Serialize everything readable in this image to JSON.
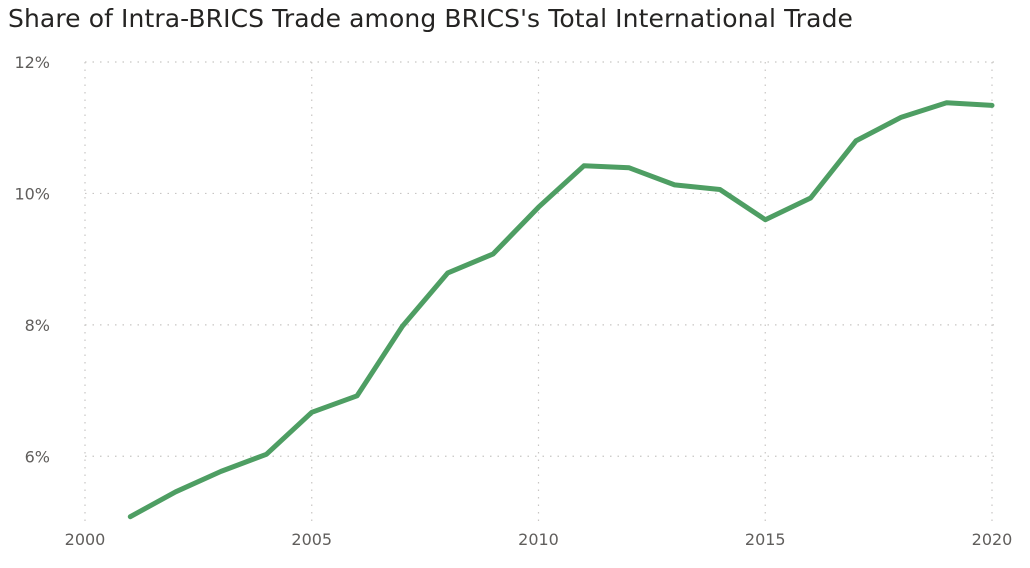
{
  "chart_data": {
    "type": "line",
    "title": "Share of Intra-BRICS Trade among BRICS's Total International Trade",
    "xlabel": "",
    "ylabel": "",
    "x": [
      2001,
      2002,
      2003,
      2004,
      2005,
      2006,
      2007,
      2008,
      2009,
      2010,
      2011,
      2012,
      2013,
      2014,
      2015,
      2016,
      2017,
      2018,
      2019,
      2020
    ],
    "series": [
      {
        "values": [
          5.08,
          5.46,
          5.77,
          6.03,
          6.67,
          6.92,
          7.98,
          8.79,
          9.08,
          9.79,
          10.42,
          10.39,
          10.13,
          10.06,
          9.6,
          9.93,
          10.8,
          11.16,
          11.38,
          11.34
        ]
      }
    ],
    "xlim": [
      2000,
      2020
    ],
    "ylim": [
      5,
      12
    ],
    "x_ticks": [
      2000,
      2005,
      2010,
      2015,
      2020
    ],
    "x_tick_labels": [
      "2000",
      "2005",
      "2010",
      "2015",
      "2020"
    ],
    "y_ticks": [
      6,
      8,
      10,
      12
    ],
    "y_tick_labels": [
      "6%",
      "8%",
      "10%",
      "12%"
    ],
    "grid": true,
    "colors": {
      "line": "#4E9E63"
    }
  }
}
